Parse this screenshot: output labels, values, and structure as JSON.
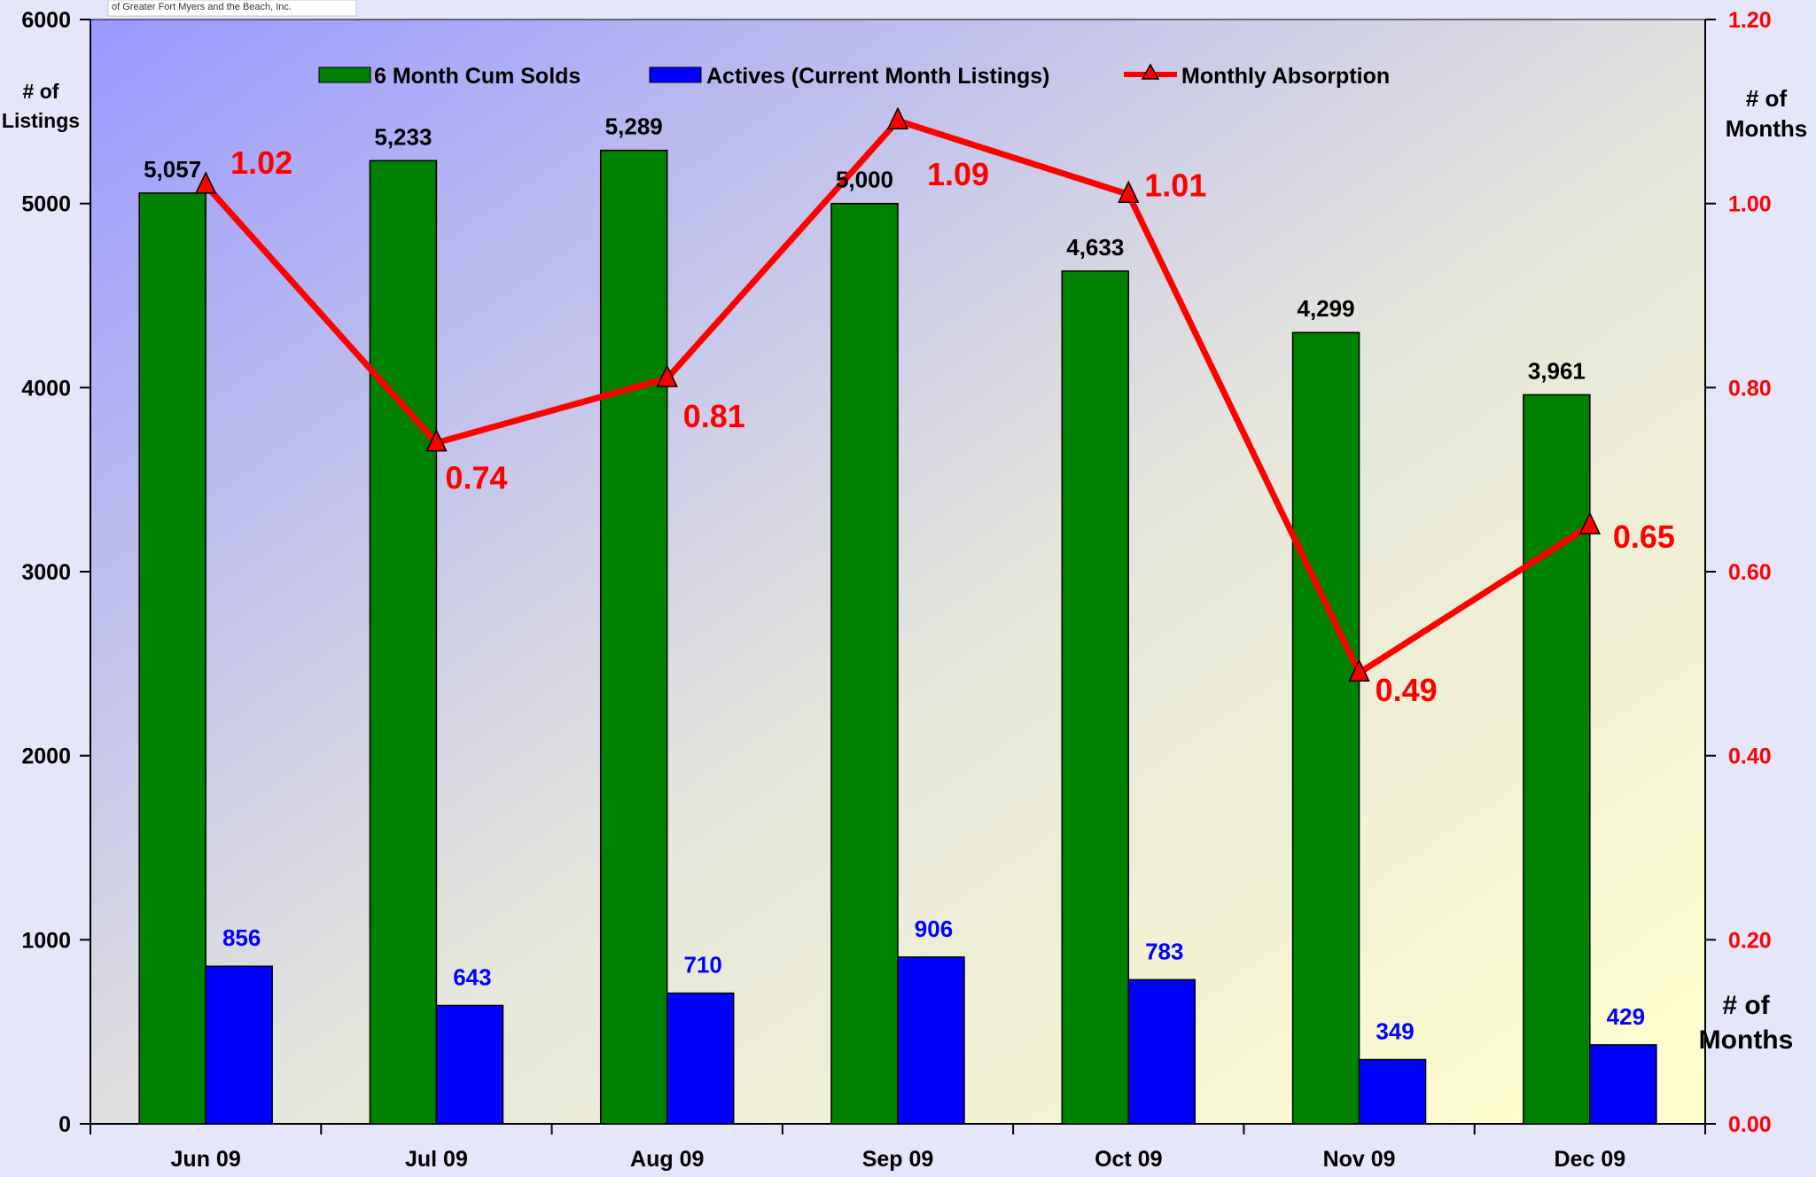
{
  "source_note": "of Greater Fort Myers and the Beach, Inc.",
  "colors": {
    "sold": "#008000",
    "active": "#0000ff",
    "absorption": "#ff0000",
    "axis_text": "#000000",
    "right_axis_text": "#ff0000",
    "plot_bg_start": "#9999ff",
    "plot_bg_end": "#ffffcc"
  },
  "chart_data": {
    "type": "bar",
    "categories": [
      "Jun 09",
      "Jul 09",
      "Aug 09",
      "Sep 09",
      "Oct 09",
      "Nov 09",
      "Dec 09"
    ],
    "series": [
      {
        "name": "6 Month Cum Solds",
        "type": "bar",
        "axis": "left",
        "values": [
          5057,
          5233,
          5289,
          5000,
          4633,
          4299,
          3961
        ],
        "labels": [
          "5,057",
          "5,233",
          "5,289",
          "5,000",
          "4,633",
          "4,299",
          "3,961"
        ]
      },
      {
        "name": "Actives (Current Month Listings)",
        "type": "bar",
        "axis": "left",
        "values": [
          856,
          643,
          710,
          906,
          783,
          349,
          429
        ],
        "labels": [
          "856",
          "643",
          "710",
          "906",
          "783",
          "349",
          "429"
        ]
      },
      {
        "name": "Monthly Absorption",
        "type": "line",
        "axis": "right",
        "values": [
          1.02,
          0.74,
          0.81,
          1.09,
          1.01,
          0.49,
          0.65
        ],
        "labels": [
          "1.02",
          "0.74",
          "0.81",
          "1.09",
          "1.01",
          "0.49",
          "0.65"
        ]
      }
    ],
    "left_axis": {
      "label_line1": "# of",
      "label_line2": "Listings",
      "ylim": [
        0,
        6000
      ],
      "ticks": [
        0,
        1000,
        2000,
        3000,
        4000,
        5000,
        6000
      ],
      "tick_labels": [
        "0",
        "1000",
        "2000",
        "3000",
        "4000",
        "5000",
        "6000"
      ]
    },
    "right_axis": {
      "label_line1": "# of",
      "label_line2": "Months",
      "ylim": [
        0,
        1.2
      ],
      "ticks": [
        0,
        0.2,
        0.4,
        0.6,
        0.8,
        1.0,
        1.2
      ],
      "tick_labels": [
        "0.00",
        "0.20",
        "0.40",
        "0.60",
        "0.80",
        "1.00",
        "1.20"
      ],
      "extra_label_line1": "# of",
      "extra_label_line2": "Months"
    },
    "legend": "top",
    "grid": false
  }
}
